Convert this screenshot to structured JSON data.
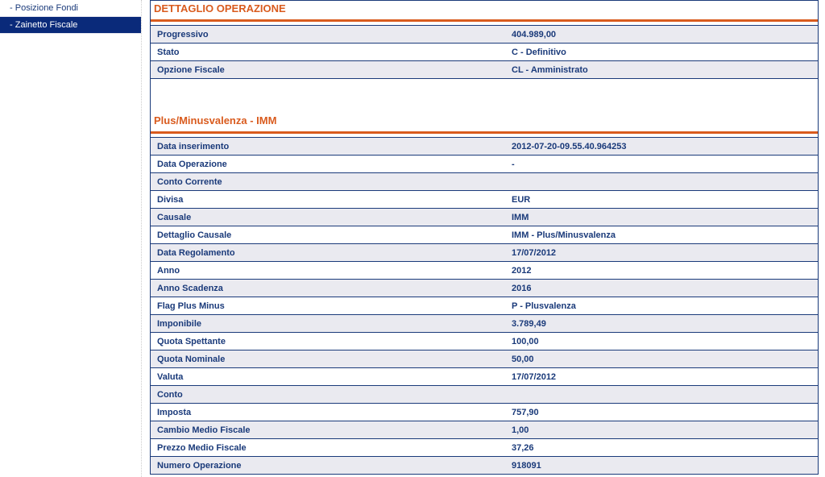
{
  "sidebar": {
    "items": [
      {
        "label": "Posizione Fondi",
        "active": false
      },
      {
        "label": "Zainetto Fiscale",
        "active": true
      }
    ]
  },
  "sections": [
    {
      "title": "DETTAGLIO OPERAZIONE",
      "rows": [
        {
          "label": "Progressivo",
          "value": "404.989,00"
        },
        {
          "label": "Stato",
          "value": "C   -   Definitivo"
        },
        {
          "label": "Opzione Fiscale",
          "value": "CL   -   Amministrato"
        }
      ]
    },
    {
      "title": "Plus/Minusvalenza - IMM",
      "rows": [
        {
          "label": "Data inserimento",
          "value": "2012-07-20-09.55.40.964253"
        },
        {
          "label": "Data Operazione",
          "value": "-"
        },
        {
          "label": "Conto Corrente",
          "value": ""
        },
        {
          "label": "Divisa",
          "value": "EUR"
        },
        {
          "label": "Causale",
          "value": "IMM"
        },
        {
          "label": "Dettaglio Causale",
          "value": "IMM   -   Plus/Minusvalenza"
        },
        {
          "label": "Data Regolamento",
          "value": "17/07/2012"
        },
        {
          "label": "Anno",
          "value": "2012"
        },
        {
          "label": "Anno Scadenza",
          "value": "2016"
        },
        {
          "label": "Flag Plus Minus",
          "value": "P   -   Plusvalenza"
        },
        {
          "label": "Imponibile",
          "value": "3.789,49"
        },
        {
          "label": "Quota Spettante",
          "value": "100,00"
        },
        {
          "label": "Quota Nominale",
          "value": "50,00"
        },
        {
          "label": "Valuta",
          "value": "17/07/2012"
        },
        {
          "label": "Conto",
          "value": ""
        },
        {
          "label": "Imposta",
          "value": "757,90"
        },
        {
          "label": "Cambio Medio Fiscale",
          "value": "1,00"
        },
        {
          "label": "Prezzo Medio Fiscale",
          "value": "37,26"
        },
        {
          "label": "Numero Operazione",
          "value": "918091"
        }
      ]
    }
  ]
}
